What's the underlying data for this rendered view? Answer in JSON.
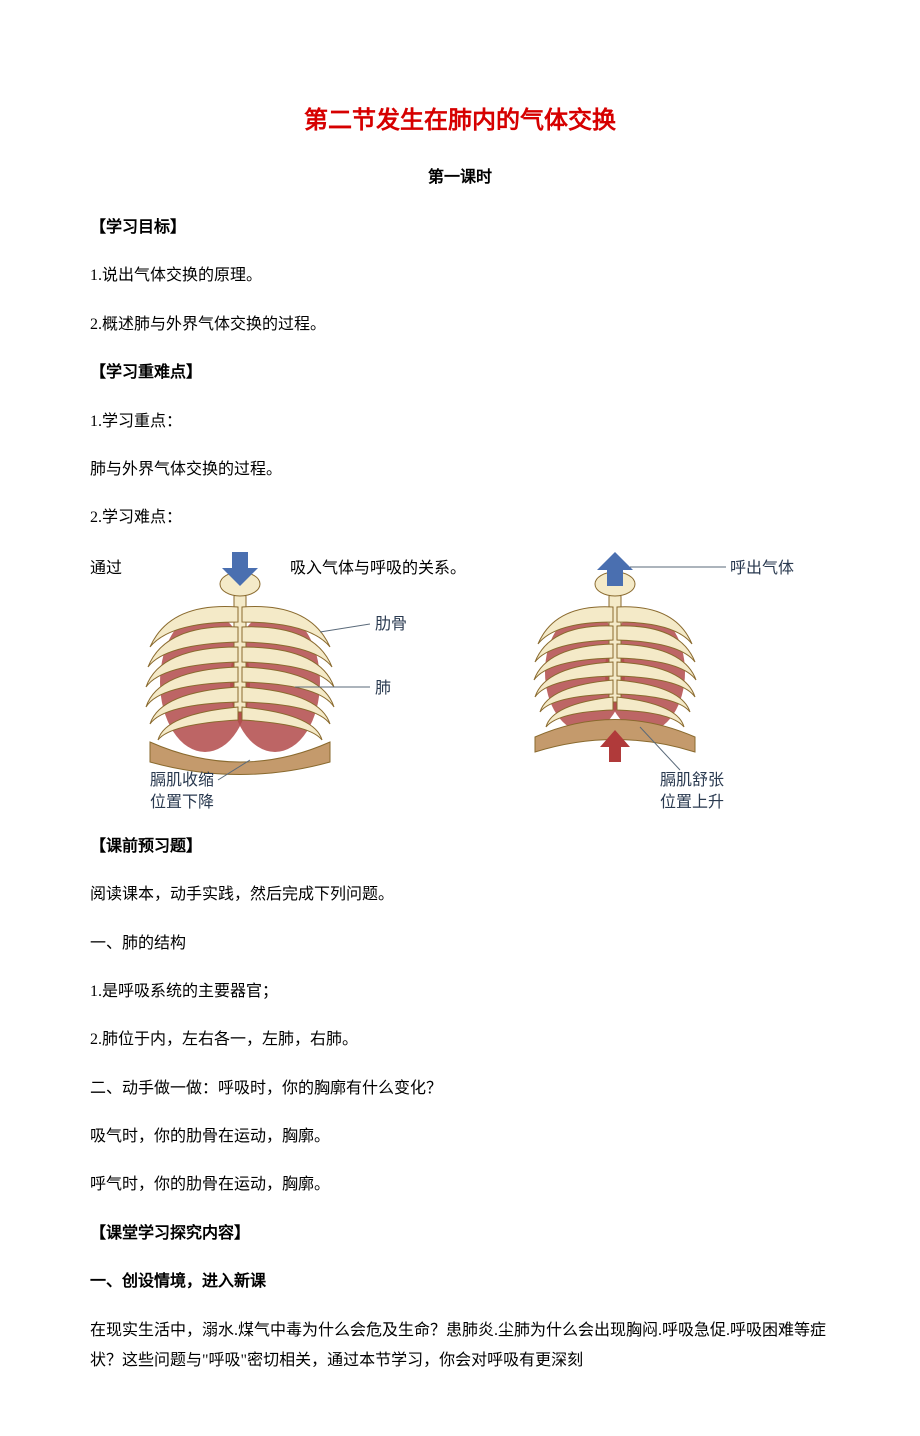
{
  "colors": {
    "title_color": "#d60000",
    "text_color": "#000000",
    "bone_fill": "#f4eac8",
    "bone_stroke": "#8a6a2e",
    "lung_fill": "#b24a4a",
    "diaphragm_fill": "#c49a6c",
    "arrow_blue": "#4a6fb0",
    "arrow_red": "#b03a3a",
    "lead_line": "#5a6a7a",
    "label_color": "#2a3a50"
  },
  "title": "第二节发生在肺内的气体交换",
  "subtitle": "第一课时",
  "sec_goal_head": "【学习目标】",
  "goal_1": "1.说出气体交换的原理。",
  "goal_2": "2.概述肺与外界气体交换的过程。",
  "sec_keypoint_head": "【学习重难点】",
  "kp_1": "1.学习重点：",
  "kp_1_body": "肺与外界气体交换的过程。",
  "kp_2": "2.学习难点：",
  "kp_2_body_prefix": "通过",
  "kp_2_body_suffix": "吸入气体与呼吸的关系。",
  "diagram": {
    "left": {
      "arrow_label": "吸入气体",
      "label_rib": "肋骨",
      "label_lung": "肺",
      "caption_l1": "膈肌收缩",
      "caption_l2": "位置下降"
    },
    "right": {
      "arrow_label": "呼出气体",
      "caption_l1": "膈肌舒张",
      "caption_l2": "位置上升"
    }
  },
  "sec_preview_head": "【课前预习题】",
  "preview_intro": "阅读课本，动手实践，然后完成下列问题。",
  "preview_a_head": "一、肺的结构",
  "preview_a_1": "1.是呼吸系统的主要器官；",
  "preview_a_2": "2.肺位于内，左右各一，左肺，右肺。",
  "preview_b_head": "二、动手做一做：呼吸时，你的胸廓有什么变化？",
  "preview_b_1": "吸气时，你的肋骨在运动，胸廓。",
  "preview_b_2": "呼气时，你的肋骨在运动，胸廓。",
  "sec_explore_head": "【课堂学习探究内容】",
  "explore_sub_head": "一、创设情境，进入新课",
  "explore_body": "在现实生活中，溺水.煤气中毒为什么会危及生命？患肺炎.尘肺为什么会出现胸闷.呼吸急促.呼吸困难等症状？这些问题与\"呼吸\"密切相关，通过本节学习，你会对呼吸有更深刻"
}
